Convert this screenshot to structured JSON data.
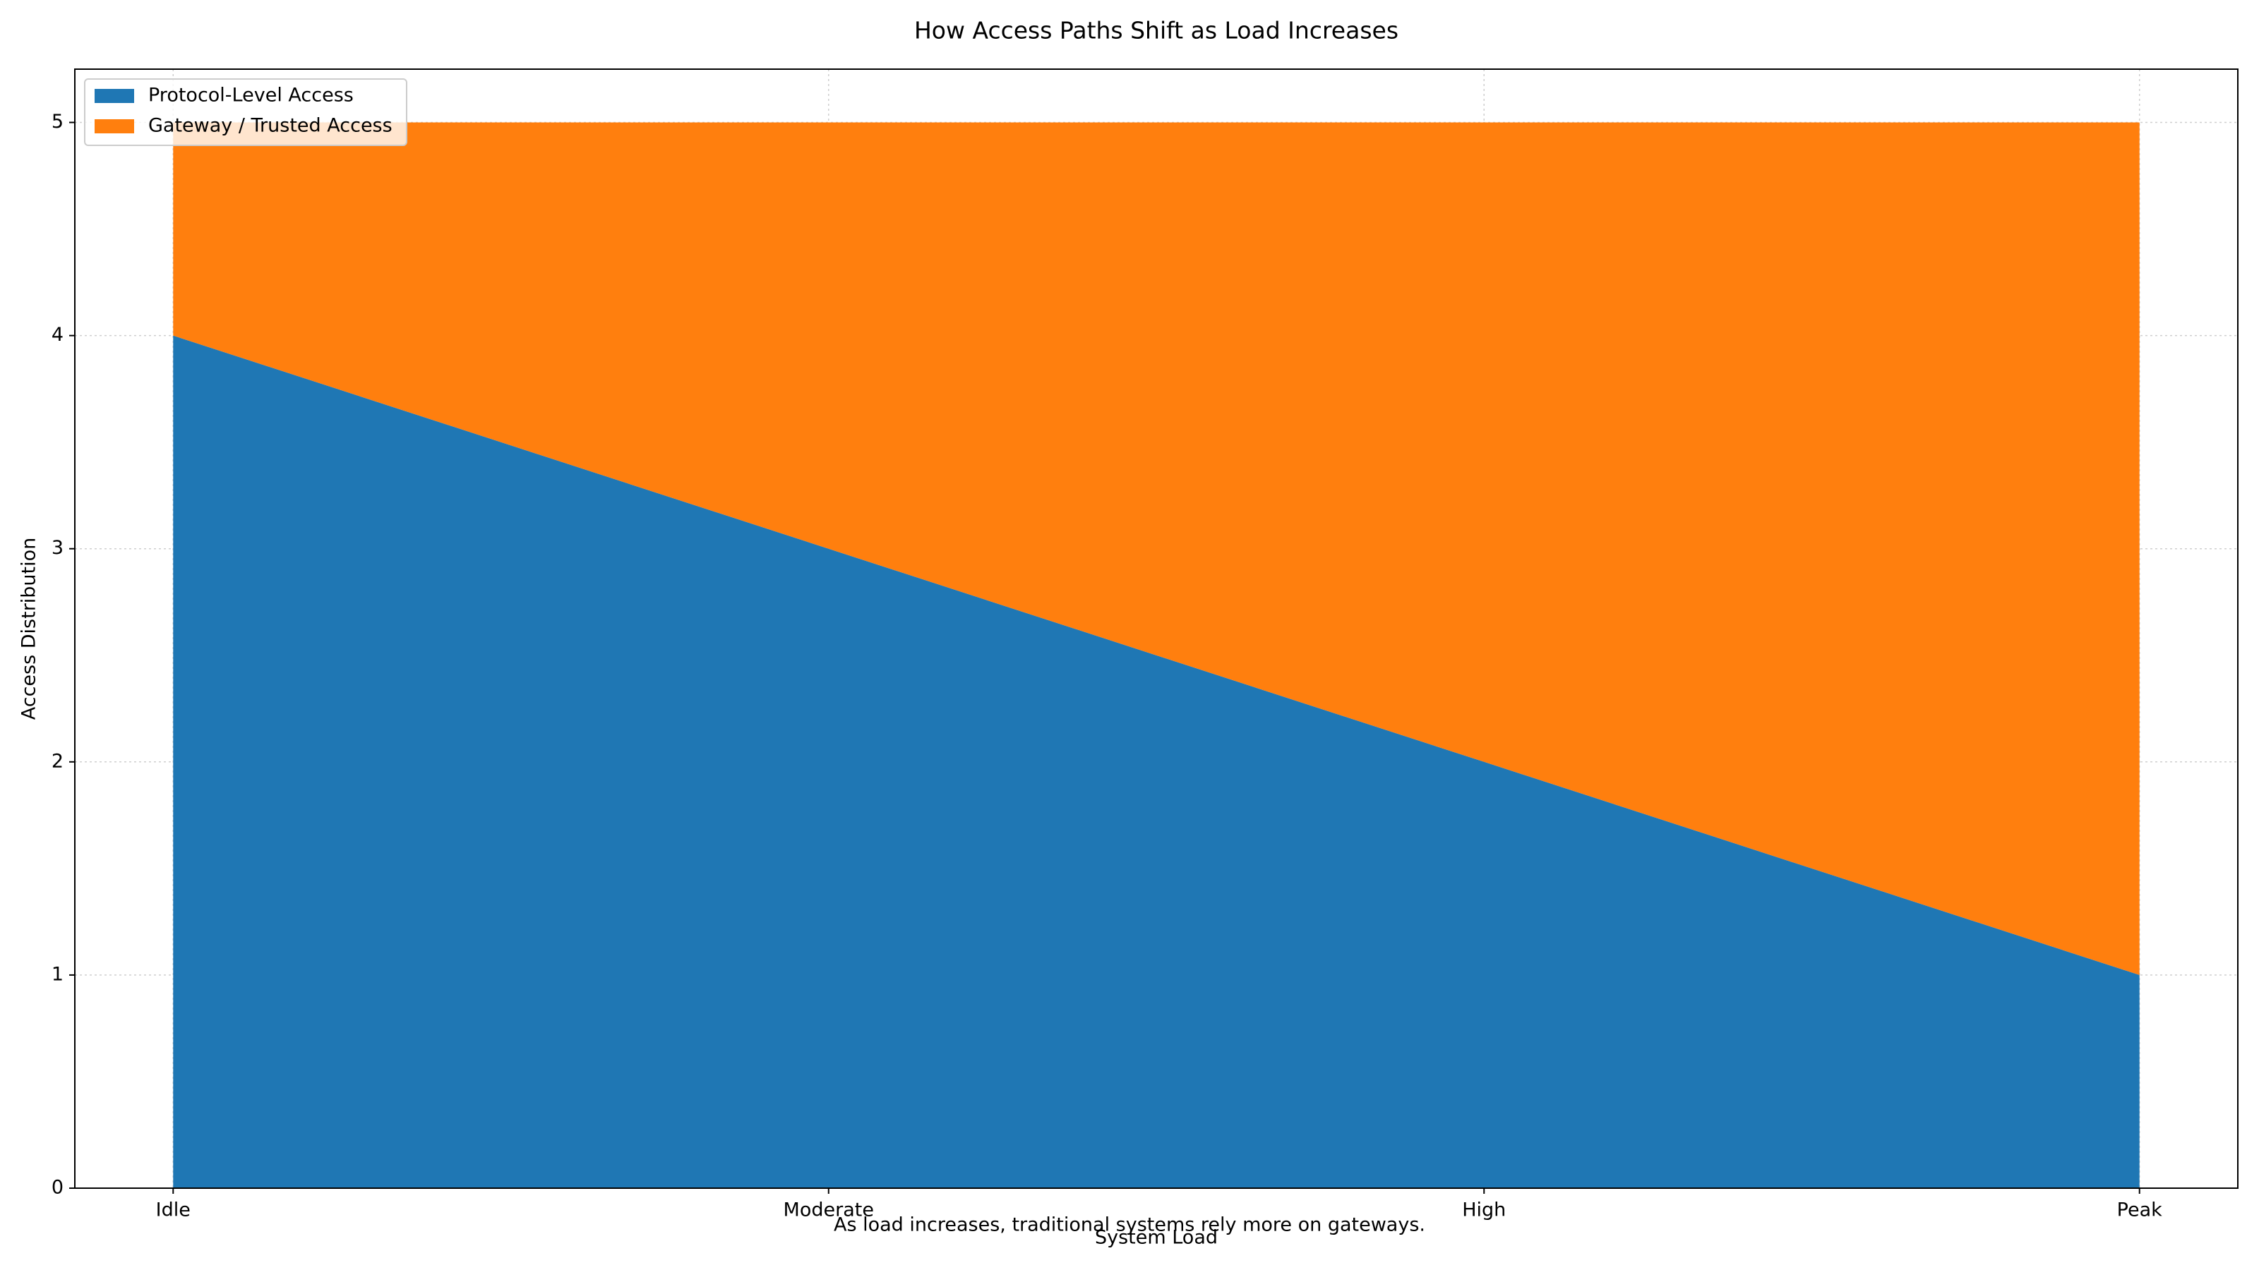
{
  "chart_data": {
    "type": "stacked-area",
    "title": "How Access Paths Shift as Load Increases",
    "annotation": "As load increases, traditional systems rely more on gateways.",
    "x_label": "System Load",
    "y_label": "Access Distribution",
    "categories": [
      "Idle",
      "Moderate",
      "High",
      "Peak"
    ],
    "series": [
      {
        "name": "Protocol-Level Access",
        "color": "#1f77b4",
        "values": [
          4,
          3,
          2,
          1
        ]
      },
      {
        "name": "Gateway / Trusted Access",
        "color": "#ff7f0e",
        "values": [
          1,
          2,
          3,
          4
        ]
      }
    ],
    "ylim": [
      0,
      5.25
    ],
    "yticks": [
      0,
      1,
      2,
      3,
      4,
      5
    ],
    "grid": true,
    "legend": "upper-left"
  }
}
